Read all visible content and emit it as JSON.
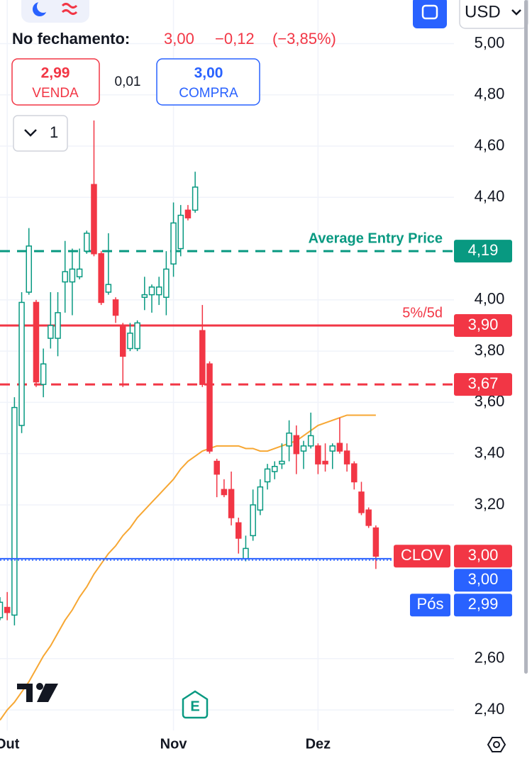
{
  "toolbar": {
    "currency": "USD",
    "close_label": "No fechamento:",
    "close": "3,00",
    "change": "−0,12",
    "change_pct": "(−3,85%)",
    "sell_price": "2,99",
    "sell_label": "VENDA",
    "spread": "0,01",
    "buy_price": "3,00",
    "buy_label": "COMPRA",
    "quantity": "1"
  },
  "chart_data": {
    "type": "candlestick",
    "categories": [
      null,
      "Out",
      null,
      null,
      null,
      null,
      null,
      null,
      null,
      null,
      null,
      null,
      null,
      null,
      null,
      null,
      null,
      null,
      null,
      null,
      null,
      null,
      null,
      null,
      "Nov",
      null,
      null,
      null,
      null,
      null,
      null,
      null,
      null,
      null,
      null,
      null,
      null,
      null,
      null,
      null,
      null,
      null,
      null,
      null,
      "Dez",
      null,
      null,
      null,
      null,
      null,
      null,
      null,
      null
    ],
    "open": [
      2.76,
      2.8,
      2.77,
      3.51,
      4.03,
      3.99,
      3.67,
      3.85,
      3.85,
      4.07,
      4.07,
      4.09,
      4.19,
      4.45,
      4.18,
      4.03,
      4.0,
      3.9,
      3.81,
      3.81,
      4.01,
      4.02,
      4.02,
      4.01,
      4.14,
      4.2,
      4.35,
      4.35,
      3.88,
      3.75,
      3.37,
      3.26,
      3.26,
      3.13,
      2.99,
      3.08,
      3.18,
      3.29,
      3.33,
      3.36,
      3.43,
      3.47,
      3.41,
      3.43,
      3.43,
      3.37,
      3.41,
      3.44,
      3.41,
      3.36,
      3.25,
      3.18,
      3.11
    ],
    "high": [
      2.84,
      2.86,
      3.62,
      4.03,
      4.28,
      4.0,
      3.81,
      4.03,
      4.03,
      4.23,
      4.2,
      4.2,
      4.27,
      4.7,
      4.19,
      4.26,
      4.01,
      3.91,
      3.91,
      3.92,
      4.09,
      4.06,
      4.09,
      4.19,
      4.38,
      4.37,
      4.37,
      4.5,
      3.98,
      3.76,
      3.38,
      3.3,
      3.33,
      3.15,
      3.08,
      3.26,
      3.3,
      3.36,
      3.37,
      3.44,
      3.53,
      3.51,
      3.45,
      3.56,
      3.44,
      3.44,
      3.44,
      3.54,
      3.44,
      3.37,
      3.29,
      3.19,
      3.12
    ],
    "low": [
      2.75,
      2.75,
      2.73,
      3.48,
      4.02,
      3.66,
      3.62,
      3.81,
      3.78,
      3.95,
      3.94,
      4.08,
      4.18,
      4.17,
      3.98,
      4.02,
      3.91,
      3.66,
      3.8,
      3.8,
      3.96,
      3.95,
      3.98,
      3.94,
      4.09,
      4.17,
      4.31,
      4.34,
      3.66,
      3.4,
      3.23,
      3.23,
      3.12,
      3.01,
      2.98,
      3.06,
      3.16,
      3.26,
      3.3,
      3.34,
      3.37,
      3.32,
      3.34,
      3.42,
      3.32,
      3.33,
      3.34,
      3.4,
      3.33,
      3.26,
      3.16,
      3.11,
      2.95
    ],
    "close": [
      2.82,
      2.78,
      3.58,
      3.99,
      4.21,
      3.68,
      3.75,
      3.9,
      3.95,
      4.11,
      4.12,
      4.12,
      4.26,
      4.18,
      3.99,
      4.06,
      3.94,
      3.78,
      3.87,
      3.91,
      4.02,
      4.05,
      4.05,
      4.12,
      4.3,
      4.33,
      4.32,
      4.44,
      3.67,
      3.41,
      3.32,
      3.24,
      3.15,
      3.07,
      3.03,
      3.2,
      3.27,
      3.34,
      3.35,
      3.37,
      3.48,
      3.4,
      3.43,
      3.47,
      3.36,
      3.36,
      3.43,
      3.41,
      3.36,
      3.29,
      3.17,
      3.12,
      3.0
    ],
    "up_color": "#089981",
    "down_color": "#f23645",
    "overlay": {
      "color": "#f7a733",
      "values": [
        2.36,
        2.4,
        2.43,
        2.47,
        2.51,
        2.56,
        2.61,
        2.65,
        2.7,
        2.75,
        2.79,
        2.84,
        2.88,
        2.93,
        2.97,
        3.01,
        3.04,
        3.08,
        3.11,
        3.15,
        3.18,
        3.21,
        3.24,
        3.27,
        3.3,
        3.34,
        3.37,
        3.39,
        3.41,
        3.42,
        3.43,
        3.43,
        3.43,
        3.43,
        3.42,
        3.42,
        3.41,
        3.41,
        3.42,
        3.43,
        3.44,
        3.45,
        3.47,
        3.49,
        3.51,
        3.52,
        3.53,
        3.54,
        3.55,
        3.55,
        3.55,
        3.55,
        3.55
      ]
    },
    "ylim": [
      2.32,
      5.17
    ],
    "yticks": [
      {
        "value": 5.0,
        "label": "5,00"
      },
      {
        "value": 4.8,
        "label": "4,80"
      },
      {
        "value": 4.6,
        "label": "4,60"
      },
      {
        "value": 4.4,
        "label": "4,40"
      },
      {
        "value": 4.0,
        "label": "4,00"
      },
      {
        "value": 3.8,
        "label": "3,80"
      },
      {
        "value": 3.6,
        "label": "3,60"
      },
      {
        "value": 3.4,
        "label": "3,40"
      },
      {
        "value": 3.2,
        "label": "3,20"
      },
      {
        "value": 2.6,
        "label": "2,60"
      },
      {
        "value": 2.4,
        "label": "2,40"
      }
    ],
    "grid": true,
    "levels": [
      {
        "value": 4.19,
        "label": "4,19",
        "text": "Average Entry Price",
        "color": "#089981",
        "style": "dashed"
      },
      {
        "value": 3.9,
        "label": "3,90",
        "text": "5%/5d",
        "color": "#f23645",
        "style": "solid"
      },
      {
        "value": 3.67,
        "label": "3,67",
        "color": "#f23645",
        "style": "dashed"
      }
    ],
    "last_price": {
      "value": 3.0,
      "label": "3,00",
      "text": "CLOV",
      "color": "#f23645"
    },
    "ask": {
      "value": 3.0,
      "label": "3,00",
      "color": "#2962ff"
    },
    "position": {
      "value": 2.99,
      "label": "2,99",
      "text": "Pós",
      "color": "#2962ff"
    },
    "event_marker": "E"
  }
}
